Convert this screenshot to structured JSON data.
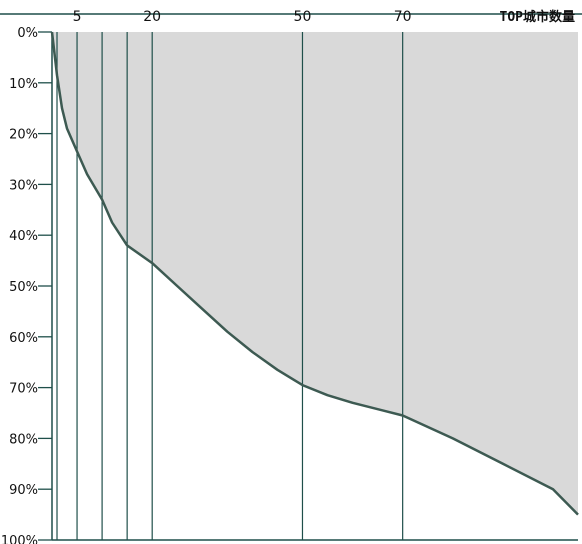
{
  "chart_data": {
    "type": "area",
    "title": "",
    "xlabel": "TOP城市数量",
    "ylabel": "",
    "x_ticks": [
      5,
      20,
      50,
      70
    ],
    "marker_lines_x": [
      1,
      5,
      10,
      15,
      20,
      50,
      70
    ],
    "y_tick_labels": [
      "0%",
      "10%",
      "20%",
      "30%",
      "40%",
      "50%",
      "60%",
      "70%",
      "80%",
      "90%",
      "100%"
    ],
    "y_ticks": [
      0,
      10,
      20,
      30,
      40,
      50,
      60,
      70,
      80,
      90,
      100
    ],
    "xlim": [
      0,
      105
    ],
    "ylim": [
      0,
      100
    ],
    "y_inverted": true,
    "series": [
      {
        "x": [
          0,
          1,
          2,
          3,
          5,
          7,
          10,
          12,
          15,
          20,
          25,
          30,
          35,
          40,
          45,
          50,
          55,
          60,
          70,
          80,
          90,
          100,
          105
        ],
        "values": [
          0,
          8.5,
          15,
          19,
          23.5,
          28,
          33,
          37.5,
          42,
          45.5,
          50,
          54.5,
          59,
          63,
          66.5,
          69.5,
          71.5,
          73,
          75.5,
          80,
          85,
          90,
          95
        ]
      }
    ],
    "colors": {
      "area_fill": "#d9d9d9",
      "line": "#3d5a52",
      "axis": "#1f4f4a",
      "gridline": "#1f4f4a"
    }
  }
}
